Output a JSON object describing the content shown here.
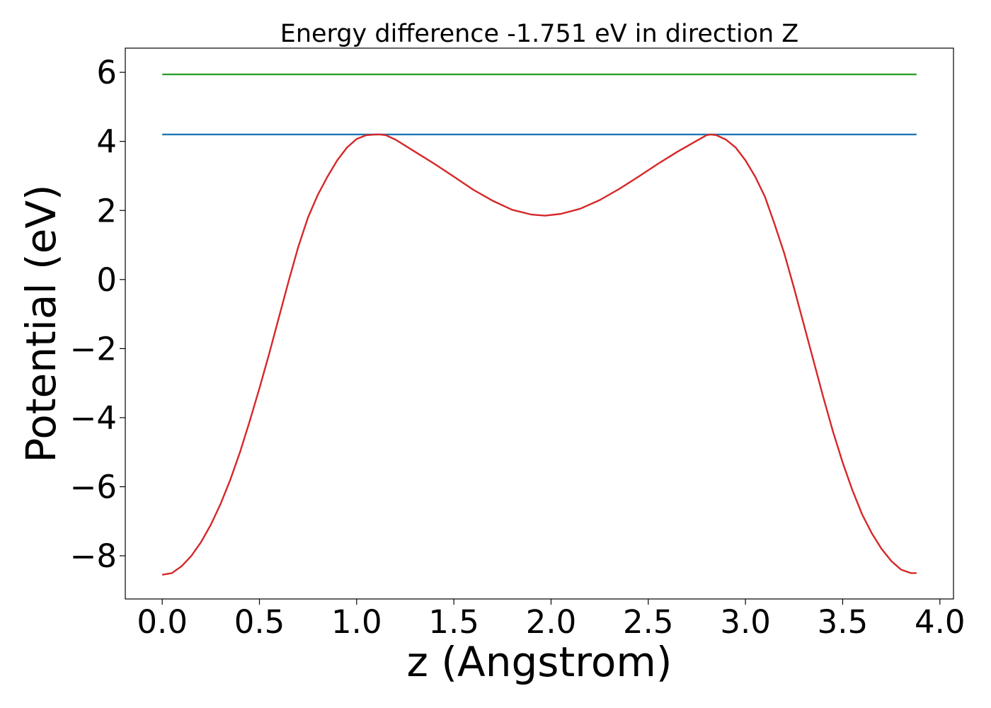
{
  "chart_data": {
    "type": "line",
    "title": "Energy difference -1.751 eV in direction Z",
    "xlabel": "z (Angstrom)",
    "ylabel": "Potential (eV)",
    "xlim": [
      -0.19,
      4.07
    ],
    "ylim": [
      -9.25,
      6.7
    ],
    "xticks": [
      0.0,
      0.5,
      1.0,
      1.5,
      2.0,
      2.5,
      3.0,
      3.5,
      4.0
    ],
    "xtick_labels": [
      "0.0",
      "0.5",
      "1.0",
      "1.5",
      "2.0",
      "2.5",
      "3.0",
      "3.5",
      "4.0"
    ],
    "yticks": [
      -8,
      -6,
      -4,
      -2,
      0,
      2,
      4,
      6
    ],
    "ytick_labels": [
      "−8",
      "−6",
      "−4",
      "−2",
      "0",
      "2",
      "4",
      "6"
    ],
    "grid": false,
    "legend": false,
    "series": [
      {
        "color": "#2ca02c",
        "x": [
          0.0,
          3.88
        ],
        "y": [
          5.94,
          5.94
        ]
      },
      {
        "color": "#1f77b4",
        "x": [
          0.0,
          3.88
        ],
        "y": [
          4.2,
          4.2
        ]
      },
      {
        "color": "#d62728",
        "x": [
          0.0,
          0.05,
          0.1,
          0.15,
          0.2,
          0.25,
          0.3,
          0.35,
          0.4,
          0.45,
          0.5,
          0.55,
          0.6,
          0.65,
          0.7,
          0.75,
          0.8,
          0.85,
          0.9,
          0.95,
          1.0,
          1.05,
          1.1,
          1.12,
          1.15,
          1.2,
          1.3,
          1.4,
          1.5,
          1.6,
          1.7,
          1.8,
          1.9,
          1.97,
          2.05,
          2.15,
          2.25,
          2.35,
          2.45,
          2.55,
          2.65,
          2.75,
          2.8,
          2.82,
          2.85,
          2.9,
          2.95,
          3.0,
          3.05,
          3.1,
          3.15,
          3.2,
          3.25,
          3.3,
          3.35,
          3.4,
          3.45,
          3.5,
          3.55,
          3.6,
          3.65,
          3.7,
          3.75,
          3.8,
          3.85,
          3.88
        ],
        "y": [
          -8.55,
          -8.5,
          -8.3,
          -8.0,
          -7.6,
          -7.1,
          -6.5,
          -5.8,
          -5.0,
          -4.1,
          -3.15,
          -2.15,
          -1.1,
          -0.05,
          0.95,
          1.8,
          2.45,
          2.98,
          3.45,
          3.82,
          4.07,
          4.18,
          4.2,
          4.2,
          4.18,
          4.05,
          3.7,
          3.35,
          2.98,
          2.6,
          2.28,
          2.02,
          1.88,
          1.85,
          1.9,
          2.05,
          2.3,
          2.62,
          2.98,
          3.35,
          3.7,
          4.02,
          4.18,
          4.2,
          4.18,
          4.05,
          3.82,
          3.45,
          2.98,
          2.4,
          1.6,
          0.75,
          -0.25,
          -1.3,
          -2.35,
          -3.4,
          -4.4,
          -5.3,
          -6.1,
          -6.8,
          -7.35,
          -7.8,
          -8.15,
          -8.4,
          -8.5,
          -8.5
        ]
      }
    ]
  }
}
